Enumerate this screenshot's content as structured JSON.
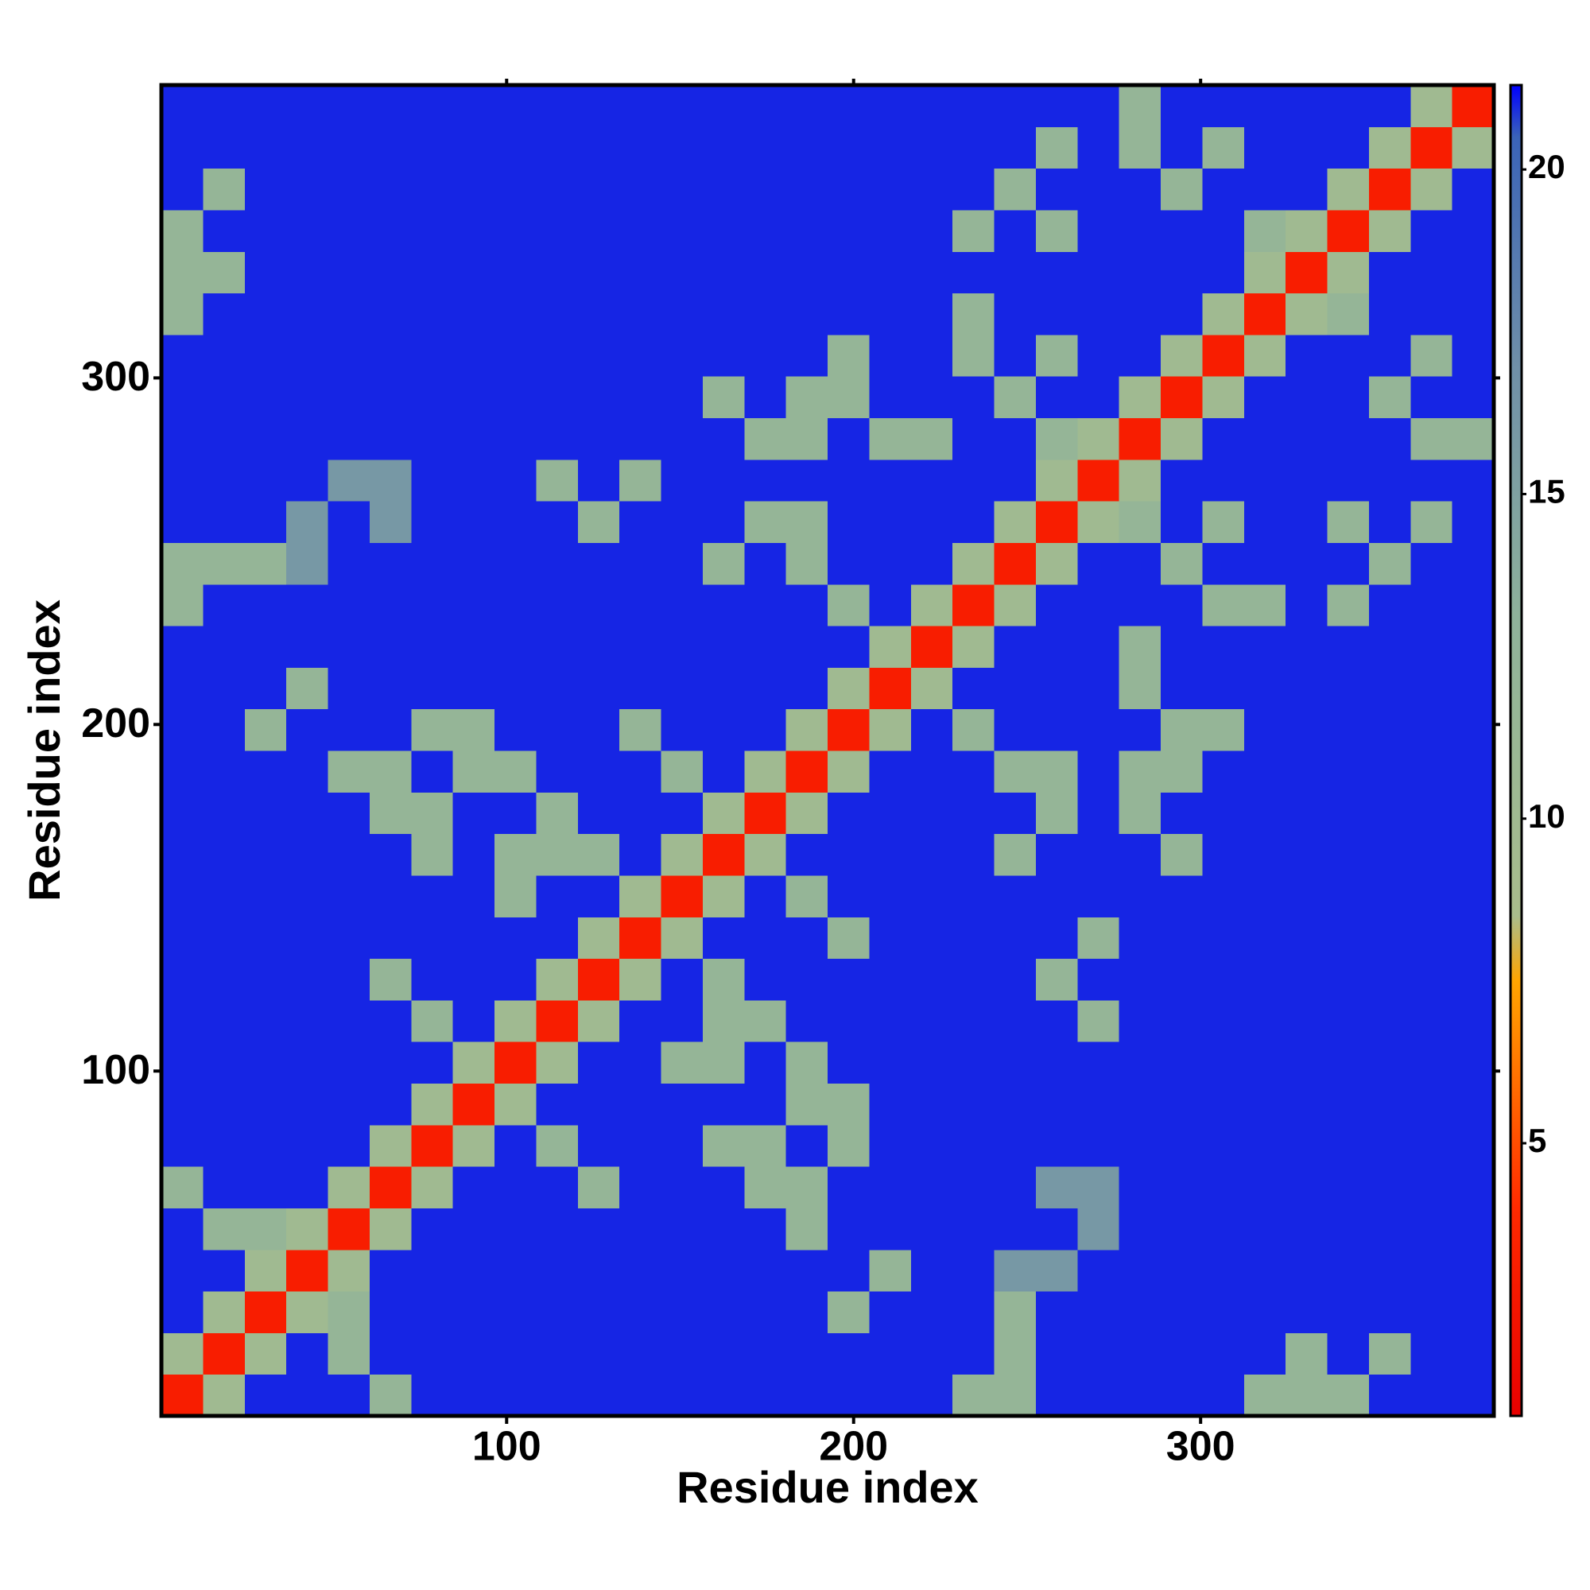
{
  "chart_data": {
    "type": "heatmap",
    "x_label": "Residue index",
    "y_label": "Residue index",
    "x": [
      6.5,
      18.5,
      30.5,
      42.5,
      54.5,
      66.5,
      78.5,
      90.5,
      102.5,
      114.5,
      126.5,
      138.5,
      150.5,
      162.5,
      174.5,
      186.5,
      198.5,
      210.5,
      222.5,
      234.5,
      246.5,
      258.5,
      270.5,
      282.5,
      294.5,
      306.5,
      318.5,
      330.5,
      342.5,
      354.5,
      366.5,
      378.5
    ],
    "y": [
      6.5,
      18.5,
      30.5,
      42.5,
      54.5,
      66.5,
      78.5,
      90.5,
      102.5,
      114.5,
      126.5,
      138.5,
      150.5,
      162.5,
      174.5,
      186.5,
      198.5,
      210.5,
      222.5,
      234.5,
      246.5,
      258.5,
      270.5,
      282.5,
      294.5,
      306.5,
      318.5,
      330.5,
      342.5,
      354.5,
      366.5,
      378.5
    ],
    "xlim": [
      0.5,
      384.5
    ],
    "ylim": [
      0.5,
      384.5
    ],
    "xticks": [
      100,
      200,
      300
    ],
    "yticks": [
      100,
      200,
      300
    ],
    "zlim": [
      0.8,
      21.3
    ],
    "zticks": [
      5,
      10,
      15,
      20
    ],
    "colorscale": [
      [
        0.8,
        "#e80000"
      ],
      [
        4,
        "#ff2a00"
      ],
      [
        7.5,
        "#ffa500"
      ],
      [
        8.5,
        "#a9bd8c"
      ],
      [
        13,
        "#8fb39a"
      ],
      [
        17,
        "#6f8fa8"
      ],
      [
        20.5,
        "#3a63b8"
      ],
      [
        21.3,
        "#0000ff"
      ]
    ],
    "z": [
      [
        3,
        10,
        21,
        21,
        21,
        12,
        21,
        21,
        21,
        21,
        21,
        21,
        21,
        21,
        21,
        21,
        21,
        21,
        21,
        12,
        12,
        21,
        21,
        21,
        21,
        21,
        12,
        12,
        12,
        21,
        21,
        21
      ],
      [
        10,
        3,
        10,
        21,
        12,
        21,
        21,
        21,
        21,
        21,
        21,
        21,
        21,
        21,
        21,
        21,
        21,
        21,
        21,
        21,
        12,
        21,
        21,
        21,
        21,
        21,
        21,
        12,
        21,
        12,
        21,
        21
      ],
      [
        21,
        10,
        3,
        10,
        12,
        21,
        21,
        21,
        21,
        21,
        21,
        21,
        21,
        21,
        21,
        21,
        12,
        21,
        21,
        21,
        12,
        21,
        21,
        21,
        21,
        21,
        21,
        21,
        21,
        21,
        21,
        21
      ],
      [
        21,
        21,
        10,
        3,
        10,
        21,
        21,
        21,
        21,
        21,
        21,
        21,
        21,
        21,
        21,
        21,
        21,
        12,
        21,
        21,
        16,
        16,
        21,
        21,
        21,
        21,
        21,
        21,
        21,
        21,
        21,
        21
      ],
      [
        21,
        12,
        12,
        10,
        3,
        10,
        21,
        21,
        21,
        21,
        21,
        21,
        21,
        21,
        21,
        12,
        21,
        21,
        21,
        21,
        21,
        21,
        16,
        21,
        21,
        21,
        21,
        21,
        21,
        21,
        21,
        21
      ],
      [
        12,
        21,
        21,
        21,
        10,
        3,
        10,
        21,
        21,
        21,
        12,
        21,
        21,
        21,
        12,
        12,
        21,
        21,
        21,
        21,
        21,
        16,
        16,
        21,
        21,
        21,
        21,
        21,
        21,
        21,
        21,
        21
      ],
      [
        21,
        21,
        21,
        21,
        21,
        10,
        3,
        10,
        21,
        12,
        21,
        21,
        21,
        12,
        12,
        21,
        12,
        21,
        21,
        21,
        21,
        21,
        21,
        21,
        21,
        21,
        21,
        21,
        21,
        21,
        21,
        21
      ],
      [
        21,
        21,
        21,
        21,
        21,
        21,
        10,
        3,
        10,
        21,
        21,
        21,
        21,
        21,
        21,
        12,
        12,
        21,
        21,
        21,
        21,
        21,
        21,
        21,
        21,
        21,
        21,
        21,
        21,
        21,
        21,
        21
      ],
      [
        21,
        21,
        21,
        21,
        21,
        21,
        21,
        10,
        3,
        10,
        21,
        21,
        12,
        12,
        21,
        12,
        21,
        21,
        21,
        21,
        21,
        21,
        21,
        21,
        21,
        21,
        21,
        21,
        21,
        21,
        21,
        21
      ],
      [
        21,
        21,
        21,
        21,
        21,
        21,
        12,
        21,
        10,
        3,
        10,
        21,
        21,
        12,
        12,
        21,
        21,
        21,
        21,
        21,
        21,
        21,
        12,
        21,
        21,
        21,
        21,
        21,
        21,
        21,
        21,
        21
      ],
      [
        21,
        21,
        21,
        21,
        21,
        12,
        21,
        21,
        21,
        10,
        3,
        10,
        21,
        12,
        21,
        21,
        21,
        21,
        21,
        21,
        21,
        12,
        21,
        21,
        21,
        21,
        21,
        21,
        21,
        21,
        21,
        21
      ],
      [
        21,
        21,
        21,
        21,
        21,
        21,
        21,
        21,
        21,
        21,
        10,
        3,
        10,
        21,
        21,
        21,
        12,
        21,
        21,
        21,
        21,
        21,
        12,
        21,
        21,
        21,
        21,
        21,
        21,
        21,
        21,
        21
      ],
      [
        21,
        21,
        21,
        21,
        21,
        21,
        21,
        21,
        12,
        21,
        21,
        10,
        3,
        10,
        21,
        12,
        21,
        21,
        21,
        21,
        21,
        21,
        21,
        21,
        21,
        21,
        21,
        21,
        21,
        21,
        21,
        21
      ],
      [
        21,
        21,
        21,
        21,
        21,
        21,
        12,
        21,
        12,
        12,
        12,
        21,
        10,
        3,
        10,
        21,
        21,
        21,
        21,
        21,
        12,
        21,
        21,
        21,
        12,
        21,
        21,
        21,
        21,
        21,
        21,
        21
      ],
      [
        21,
        21,
        21,
        21,
        21,
        12,
        12,
        21,
        21,
        12,
        21,
        21,
        21,
        10,
        3,
        10,
        21,
        21,
        21,
        21,
        21,
        12,
        21,
        12,
        21,
        21,
        21,
        21,
        21,
        21,
        21,
        21
      ],
      [
        21,
        21,
        21,
        21,
        12,
        12,
        21,
        12,
        12,
        21,
        21,
        21,
        12,
        21,
        10,
        3,
        10,
        21,
        21,
        21,
        12,
        12,
        21,
        12,
        12,
        21,
        21,
        21,
        21,
        21,
        21,
        21
      ],
      [
        21,
        21,
        12,
        21,
        21,
        21,
        12,
        12,
        21,
        21,
        21,
        12,
        21,
        21,
        21,
        10,
        3,
        10,
        21,
        12,
        21,
        21,
        21,
        21,
        12,
        12,
        21,
        21,
        21,
        21,
        21,
        21
      ],
      [
        21,
        21,
        21,
        12,
        21,
        21,
        21,
        21,
        21,
        21,
        21,
        21,
        21,
        21,
        21,
        21,
        10,
        3,
        10,
        21,
        21,
        21,
        21,
        12,
        21,
        21,
        21,
        21,
        21,
        21,
        21,
        21
      ],
      [
        21,
        21,
        21,
        21,
        21,
        21,
        21,
        21,
        21,
        21,
        21,
        21,
        21,
        21,
        21,
        21,
        21,
        10,
        3,
        10,
        21,
        21,
        21,
        12,
        21,
        21,
        21,
        21,
        21,
        21,
        21,
        21
      ],
      [
        12,
        21,
        21,
        21,
        21,
        21,
        21,
        21,
        21,
        21,
        21,
        21,
        21,
        21,
        21,
        21,
        12,
        21,
        10,
        3,
        10,
        21,
        21,
        21,
        21,
        12,
        12,
        21,
        12,
        21,
        21,
        21
      ],
      [
        12,
        12,
        12,
        16,
        21,
        21,
        21,
        21,
        21,
        21,
        21,
        21,
        21,
        12,
        21,
        12,
        21,
        21,
        21,
        10,
        3,
        10,
        21,
        21,
        12,
        21,
        21,
        21,
        21,
        12,
        21,
        21
      ],
      [
        21,
        21,
        21,
        16,
        21,
        16,
        21,
        21,
        21,
        21,
        12,
        21,
        21,
        21,
        12,
        12,
        21,
        21,
        21,
        21,
        10,
        3,
        10,
        12,
        21,
        12,
        21,
        21,
        12,
        21,
        12,
        21
      ],
      [
        21,
        21,
        21,
        21,
        16,
        16,
        21,
        21,
        21,
        12,
        21,
        12,
        21,
        21,
        21,
        21,
        21,
        21,
        21,
        21,
        21,
        10,
        3,
        10,
        21,
        21,
        21,
        21,
        21,
        21,
        21,
        21
      ],
      [
        21,
        21,
        21,
        21,
        21,
        21,
        21,
        21,
        21,
        21,
        21,
        21,
        21,
        21,
        12,
        12,
        21,
        12,
        12,
        21,
        21,
        12,
        10,
        3,
        10,
        21,
        21,
        21,
        21,
        21,
        12,
        12
      ],
      [
        21,
        21,
        21,
        21,
        21,
        21,
        21,
        21,
        21,
        21,
        21,
        21,
        21,
        12,
        21,
        12,
        12,
        21,
        21,
        21,
        12,
        21,
        21,
        10,
        3,
        10,
        21,
        21,
        21,
        12,
        21,
        21
      ],
      [
        21,
        21,
        21,
        21,
        21,
        21,
        21,
        21,
        21,
        21,
        21,
        21,
        21,
        21,
        21,
        21,
        12,
        21,
        21,
        12,
        21,
        12,
        21,
        21,
        10,
        3,
        10,
        21,
        21,
        21,
        12,
        21
      ],
      [
        12,
        21,
        21,
        21,
        21,
        21,
        21,
        21,
        21,
        21,
        21,
        21,
        21,
        21,
        21,
        21,
        21,
        21,
        21,
        12,
        21,
        21,
        21,
        21,
        21,
        10,
        3,
        10,
        12,
        21,
        21,
        21
      ],
      [
        12,
        12,
        21,
        21,
        21,
        21,
        21,
        21,
        21,
        21,
        21,
        21,
        21,
        21,
        21,
        21,
        21,
        21,
        21,
        21,
        21,
        21,
        21,
        21,
        21,
        21,
        10,
        3,
        10,
        21,
        21,
        21
      ],
      [
        12,
        21,
        21,
        21,
        21,
        21,
        21,
        21,
        21,
        21,
        21,
        21,
        21,
        21,
        21,
        21,
        21,
        21,
        21,
        12,
        21,
        12,
        21,
        21,
        21,
        21,
        12,
        10,
        3,
        10,
        21,
        21
      ],
      [
        21,
        12,
        21,
        21,
        21,
        21,
        21,
        21,
        21,
        21,
        21,
        21,
        21,
        21,
        21,
        21,
        21,
        21,
        21,
        21,
        12,
        21,
        21,
        21,
        12,
        21,
        21,
        21,
        10,
        3,
        10,
        21
      ],
      [
        21,
        21,
        21,
        21,
        21,
        21,
        21,
        21,
        21,
        21,
        21,
        21,
        21,
        21,
        21,
        21,
        21,
        21,
        21,
        21,
        21,
        12,
        21,
        12,
        21,
        12,
        21,
        21,
        21,
        10,
        3,
        10
      ],
      [
        21,
        21,
        21,
        21,
        21,
        21,
        21,
        21,
        21,
        21,
        21,
        21,
        21,
        21,
        21,
        21,
        21,
        21,
        21,
        21,
        21,
        21,
        21,
        12,
        21,
        21,
        21,
        21,
        21,
        21,
        10,
        3
      ]
    ]
  }
}
